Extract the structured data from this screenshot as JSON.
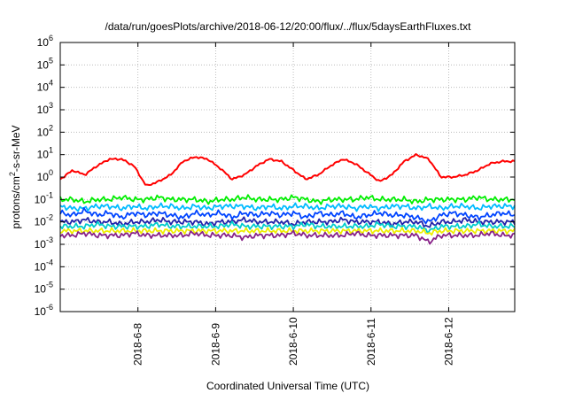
{
  "chart_data": {
    "type": "line",
    "title": "/data/run/goesPlots/archive/2018-06-12/20:00/flux/../flux/5daysEarthFluxes.txt",
    "xlabel": "Coordinated Universal Time (UTC)",
    "ylabel": {
      "base": "protons/cm",
      "sup": "2",
      "rest": "-s-sr-MeV"
    },
    "y_scale": "log",
    "ylim_exp": [
      -6,
      6
    ],
    "y_ticks": [
      {
        "base": "10",
        "exp": "-6"
      },
      {
        "base": "10",
        "exp": "-5"
      },
      {
        "base": "10",
        "exp": "-4"
      },
      {
        "base": "10",
        "exp": "-3"
      },
      {
        "base": "10",
        "exp": "-2"
      },
      {
        "base": "10",
        "exp": "-1"
      },
      {
        "base": "10",
        "exp": "0"
      },
      {
        "base": "10",
        "exp": "1"
      },
      {
        "base": "10",
        "exp": "2"
      },
      {
        "base": "10",
        "exp": "3"
      },
      {
        "base": "10",
        "exp": "4"
      },
      {
        "base": "10",
        "exp": "5"
      },
      {
        "base": "10",
        "exp": "6"
      }
    ],
    "x_tick_labels": [
      "2018-6-8",
      "2018-6-9",
      "2018-6-10",
      "2018-6-11",
      "2018-6-12"
    ],
    "x_tick_days": [
      1,
      2,
      3,
      4,
      5
    ],
    "x_range_days": [
      0,
      5.85
    ],
    "grid": true,
    "legend": "none",
    "series": [
      {
        "color": "#ff0000",
        "levels_log10": [
          -0.1,
          0.3,
          0.1,
          0.5,
          0.8,
          0.8,
          0.5,
          -0.4,
          -0.2,
          0.1,
          0.7,
          0.9,
          0.8,
          0.4,
          -0.1,
          0.1,
          0.5,
          0.8,
          0.7,
          0.3,
          -0.1,
          0.1,
          0.5,
          0.8,
          0.6,
          0.2,
          -0.2,
          0.1,
          0.7,
          1.0,
          0.8,
          0.0,
          0.0,
          0.1,
          0.3,
          0.6,
          0.7,
          0.7
        ]
      },
      {
        "color": "#00ee00",
        "levels_log10": [
          -1.0,
          -1.0,
          -1.1,
          -1.0,
          -1.0,
          -0.9,
          -1.0,
          -1.0,
          -0.9,
          -1.0,
          -1.0,
          -1.0,
          -1.1,
          -1.0,
          -1.0,
          -0.9,
          -1.0,
          -1.0,
          -1.0,
          -0.9,
          -1.0,
          -1.1,
          -1.0,
          -1.0,
          -1.0,
          -0.9,
          -1.0,
          -1.0,
          -1.0,
          -1.1,
          -1.0,
          -1.0,
          -1.0,
          -1.0,
          -0.9,
          -1.0,
          -1.0,
          -1.0
        ]
      },
      {
        "color": "#00bbff",
        "levels_log10": [
          -1.3,
          -1.4,
          -1.4,
          -1.3,
          -1.3,
          -1.4,
          -1.3,
          -1.4,
          -1.3,
          -1.3,
          -1.4,
          -1.3,
          -1.4,
          -1.3,
          -1.3,
          -1.3,
          -1.4,
          -1.3,
          -1.4,
          -1.3,
          -1.3,
          -1.4,
          -1.3,
          -1.3,
          -1.4,
          -1.3,
          -1.4,
          -1.3,
          -1.3,
          -1.4,
          -1.3,
          -1.4,
          -1.3,
          -1.3,
          -1.4,
          -1.3,
          -1.3,
          -1.3
        ]
      },
      {
        "color": "#0044ff",
        "levels_log10": [
          -1.6,
          -1.7,
          -1.5,
          -1.7,
          -1.6,
          -1.8,
          -1.6,
          -1.7,
          -1.6,
          -1.7,
          -1.8,
          -1.6,
          -1.7,
          -1.6,
          -1.8,
          -1.6,
          -1.7,
          -1.6,
          -1.7,
          -1.6,
          -1.8,
          -1.6,
          -1.7,
          -1.6,
          -1.8,
          -1.7,
          -1.6,
          -1.7,
          -1.7,
          -1.8,
          -2.0,
          -1.7,
          -1.6,
          -1.7,
          -1.8,
          -1.7,
          -1.6,
          -1.7
        ]
      },
      {
        "color": "#2222aa",
        "levels_log10": [
          -2.0,
          -2.0,
          -1.9,
          -2.0,
          -2.0,
          -2.1,
          -2.0,
          -2.0,
          -1.9,
          -2.0,
          -2.0,
          -2.0,
          -2.1,
          -2.0,
          -2.0,
          -1.9,
          -2.0,
          -2.0,
          -2.0,
          -2.1,
          -2.0,
          -2.0,
          -2.0,
          -1.9,
          -2.0,
          -2.0,
          -2.0,
          -2.1,
          -2.0,
          -2.0,
          -2.2,
          -2.0,
          -2.0,
          -1.9,
          -2.0,
          -2.0,
          -2.0,
          -2.0
        ]
      },
      {
        "color": "#00cccc",
        "levels_log10": [
          -2.2,
          -2.2,
          -2.2,
          -2.1,
          -2.2,
          -2.2,
          -2.2,
          -2.2,
          -2.1,
          -2.2,
          -2.2,
          -2.2,
          -2.2,
          -2.2,
          -2.1,
          -2.2,
          -2.2,
          -2.2,
          -2.2,
          -2.2,
          -2.1,
          -2.2,
          -2.2,
          -2.2,
          -2.2,
          -2.2,
          -2.1,
          -2.2,
          -2.2,
          -2.2,
          -2.4,
          -2.2,
          -2.2,
          -2.2,
          -2.1,
          -2.2,
          -2.2,
          -2.2
        ]
      },
      {
        "color": "#eeee00",
        "levels_log10": [
          -2.4,
          -2.4,
          -2.4,
          -2.4,
          -2.4,
          -2.4,
          -2.4,
          -2.4,
          -2.4,
          -2.4,
          -2.4,
          -2.4,
          -2.4,
          -2.4,
          -2.4,
          -2.4,
          -2.4,
          -2.4,
          -2.4,
          -2.4,
          -2.4,
          -2.4,
          -2.4,
          -2.4,
          -2.4,
          -2.4,
          -2.4,
          -2.4,
          -2.4,
          -2.4,
          -2.5,
          -2.4,
          -2.4,
          -2.4,
          -2.4,
          -2.4,
          -2.4,
          -2.4
        ]
      },
      {
        "color": "#882288",
        "levels_log10": [
          -2.6,
          -2.6,
          -2.5,
          -2.6,
          -2.6,
          -2.6,
          -2.5,
          -2.6,
          -2.6,
          -2.6,
          -2.6,
          -2.5,
          -2.6,
          -2.6,
          -2.6,
          -2.7,
          -2.6,
          -2.6,
          -2.6,
          -2.5,
          -2.6,
          -2.6,
          -2.6,
          -2.6,
          -2.5,
          -2.6,
          -2.6,
          -2.6,
          -2.6,
          -2.6,
          -2.9,
          -2.6,
          -2.6,
          -2.6,
          -2.6,
          -2.5,
          -2.6,
          -2.6
        ]
      }
    ]
  }
}
